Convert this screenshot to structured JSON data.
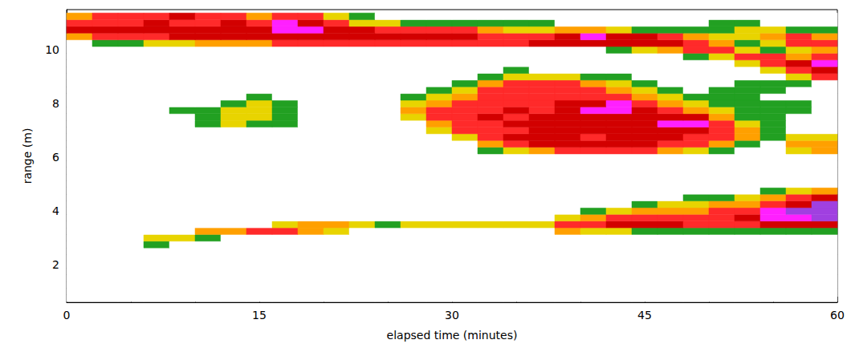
{
  "chart_data": {
    "type": "heatmap",
    "xlabel": "elapsed time (minutes)",
    "ylabel": "range (m)",
    "xlim": [
      0,
      60
    ],
    "xticks": [
      0,
      15,
      30,
      45,
      60
    ],
    "ylim": [
      0.6,
      11.5
    ],
    "yticks": [
      2,
      4,
      6,
      8,
      10
    ],
    "grid": false,
    "x": [
      1,
      3,
      5,
      7,
      9,
      11,
      13,
      15,
      17,
      19,
      21,
      23,
      25,
      27,
      29,
      31,
      33,
      35,
      37,
      39,
      41,
      43,
      45,
      47,
      49,
      51,
      53,
      55,
      57,
      59
    ],
    "y": [
      0.75,
      1,
      1.25,
      1.5,
      1.75,
      2,
      2.25,
      2.5,
      2.75,
      3,
      3.25,
      3.5,
      3.75,
      4,
      4.25,
      4.5,
      4.75,
      5,
      5.25,
      5.5,
      5.75,
      6,
      6.25,
      6.5,
      6.75,
      7,
      7.25,
      7.5,
      7.75,
      8,
      8.25,
      8.5,
      8.75,
      9,
      9.25,
      9.5,
      9.75,
      10,
      10.25,
      10.5,
      10.75,
      11,
      11.25
    ],
    "cells": [
      [
        0,
        0,
        0,
        0,
        0,
        0,
        0,
        0,
        0,
        0,
        0,
        0,
        0,
        0,
        0,
        0,
        0,
        0,
        0,
        0,
        0,
        0,
        0,
        0,
        0,
        0,
        0,
        0,
        0,
        0
      ],
      [
        0,
        0,
        0,
        0,
        0,
        0,
        0,
        0,
        0,
        0,
        0,
        0,
        0,
        0,
        0,
        0,
        0,
        0,
        0,
        0,
        0,
        0,
        0,
        0,
        0,
        0,
        0,
        0,
        0,
        0
      ],
      [
        0,
        0,
        0,
        0,
        0,
        0,
        0,
        0,
        0,
        0,
        0,
        0,
        0,
        0,
        0,
        0,
        0,
        0,
        0,
        0,
        0,
        0,
        0,
        0,
        0,
        0,
        0,
        0,
        0,
        0
      ],
      [
        0,
        0,
        0,
        0,
        0,
        0,
        0,
        0,
        0,
        0,
        0,
        0,
        0,
        0,
        0,
        0,
        0,
        0,
        0,
        0,
        0,
        0,
        0,
        0,
        0,
        0,
        0,
        0,
        0,
        0
      ],
      [
        0,
        0,
        0,
        0,
        0,
        0,
        0,
        0,
        0,
        0,
        0,
        0,
        0,
        0,
        0,
        0,
        0,
        0,
        0,
        0,
        0,
        0,
        0,
        0,
        0,
        0,
        0,
        0,
        0,
        0
      ],
      [
        0,
        0,
        0,
        0,
        0,
        0,
        0,
        0,
        0,
        0,
        0,
        0,
        0,
        0,
        0,
        0,
        0,
        0,
        0,
        0,
        0,
        0,
        0,
        0,
        0,
        0,
        0,
        0,
        0,
        0
      ],
      [
        0,
        0,
        0,
        0,
        0,
        0,
        0,
        0,
        0,
        0,
        0,
        0,
        0,
        0,
        0,
        0,
        0,
        0,
        0,
        0,
        0,
        0,
        0,
        0,
        0,
        0,
        0,
        0,
        0,
        0
      ],
      [
        0,
        0,
        0,
        0,
        0,
        0,
        0,
        0,
        0,
        0,
        0,
        0,
        0,
        0,
        0,
        0,
        0,
        0,
        0,
        0,
        0,
        0,
        0,
        0,
        0,
        0,
        0,
        0,
        0,
        0
      ],
      [
        0,
        0,
        0,
        1,
        0,
        0,
        0,
        0,
        0,
        0,
        0,
        0,
        0,
        0,
        0,
        0,
        0,
        0,
        0,
        0,
        0,
        0,
        0,
        0,
        0,
        0,
        0,
        0,
        0,
        0
      ],
      [
        0,
        0,
        0,
        2,
        2,
        1,
        0,
        0,
        0,
        0,
        0,
        0,
        0,
        0,
        0,
        0,
        0,
        0,
        0,
        0,
        0,
        0,
        0,
        0,
        0,
        0,
        0,
        0,
        0,
        0
      ],
      [
        0,
        0,
        0,
        0,
        0,
        3,
        3,
        4,
        4,
        3,
        2,
        0,
        0,
        0,
        0,
        0,
        0,
        0,
        0,
        3,
        2,
        2,
        1,
        1,
        1,
        1,
        1,
        1,
        1,
        1
      ],
      [
        0,
        0,
        0,
        0,
        0,
        0,
        0,
        0,
        2,
        3,
        3,
        2,
        1,
        2,
        2,
        2,
        2,
        2,
        2,
        4,
        4,
        5,
        5,
        5,
        4,
        4,
        4,
        5,
        5,
        5
      ],
      [
        0,
        0,
        0,
        0,
        0,
        0,
        0,
        0,
        0,
        0,
        0,
        0,
        0,
        0,
        0,
        0,
        0,
        0,
        0,
        2,
        3,
        4,
        4,
        4,
        4,
        4,
        5,
        6,
        6,
        7
      ],
      [
        0,
        0,
        0,
        0,
        0,
        0,
        0,
        0,
        0,
        0,
        0,
        0,
        0,
        0,
        0,
        0,
        0,
        0,
        0,
        0,
        1,
        2,
        3,
        3,
        3,
        4,
        4,
        6,
        7,
        7
      ],
      [
        0,
        0,
        0,
        0,
        0,
        0,
        0,
        0,
        0,
        0,
        0,
        0,
        0,
        0,
        0,
        0,
        0,
        0,
        0,
        0,
        0,
        0,
        1,
        2,
        2,
        3,
        3,
        4,
        5,
        7
      ],
      [
        0,
        0,
        0,
        0,
        0,
        0,
        0,
        0,
        0,
        0,
        0,
        0,
        0,
        0,
        0,
        0,
        0,
        0,
        0,
        0,
        0,
        0,
        0,
        0,
        1,
        1,
        2,
        3,
        4,
        5
      ],
      [
        0,
        0,
        0,
        0,
        0,
        0,
        0,
        0,
        0,
        0,
        0,
        0,
        0,
        0,
        0,
        0,
        0,
        0,
        0,
        0,
        0,
        0,
        0,
        0,
        0,
        0,
        0,
        1,
        2,
        3
      ],
      [
        0,
        0,
        0,
        0,
        0,
        0,
        0,
        0,
        0,
        0,
        0,
        0,
        0,
        0,
        0,
        0,
        0,
        0,
        0,
        0,
        0,
        0,
        0,
        0,
        0,
        0,
        0,
        0,
        0,
        0
      ],
      [
        0,
        0,
        0,
        0,
        0,
        0,
        0,
        0,
        0,
        0,
        0,
        0,
        0,
        0,
        0,
        0,
        0,
        0,
        0,
        0,
        0,
        0,
        0,
        0,
        0,
        0,
        0,
        0,
        0,
        0
      ],
      [
        0,
        0,
        0,
        0,
        0,
        0,
        0,
        0,
        0,
        0,
        0,
        0,
        0,
        0,
        0,
        0,
        0,
        0,
        0,
        0,
        0,
        0,
        0,
        0,
        0,
        0,
        0,
        0,
        0,
        0
      ],
      [
        0,
        0,
        0,
        0,
        0,
        0,
        0,
        0,
        0,
        0,
        0,
        0,
        0,
        0,
        0,
        0,
        0,
        0,
        0,
        0,
        0,
        0,
        0,
        0,
        0,
        0,
        0,
        0,
        0,
        0
      ],
      [
        0,
        0,
        0,
        0,
        0,
        0,
        0,
        0,
        0,
        0,
        0,
        0,
        0,
        0,
        0,
        0,
        0,
        0,
        0,
        0,
        0,
        0,
        0,
        0,
        0,
        0,
        0,
        0,
        0,
        0
      ],
      [
        0,
        0,
        0,
        0,
        0,
        0,
        0,
        0,
        0,
        0,
        0,
        0,
        0,
        0,
        0,
        0,
        1,
        2,
        3,
        4,
        4,
        4,
        4,
        3,
        2,
        1,
        0,
        0,
        2,
        3
      ],
      [
        0,
        0,
        0,
        0,
        0,
        0,
        0,
        0,
        0,
        0,
        0,
        0,
        0,
        0,
        0,
        0,
        3,
        4,
        5,
        5,
        5,
        5,
        5,
        4,
        4,
        3,
        1,
        0,
        3,
        3
      ],
      [
        0,
        0,
        0,
        0,
        0,
        0,
        0,
        0,
        0,
        0,
        0,
        0,
        0,
        0,
        0,
        2,
        4,
        5,
        5,
        5,
        4,
        5,
        5,
        5,
        4,
        4,
        3,
        1,
        2,
        2
      ],
      [
        0,
        0,
        0,
        0,
        0,
        0,
        0,
        0,
        0,
        0,
        0,
        0,
        0,
        0,
        2,
        4,
        4,
        4,
        5,
        5,
        5,
        5,
        5,
        5,
        5,
        4,
        3,
        1,
        0,
        0
      ],
      [
        0,
        0,
        0,
        0,
        0,
        1,
        2,
        1,
        1,
        0,
        0,
        0,
        0,
        0,
        3,
        4,
        4,
        5,
        5,
        5,
        5,
        5,
        5,
        6,
        6,
        4,
        2,
        1,
        0,
        0
      ],
      [
        0,
        0,
        0,
        0,
        0,
        1,
        2,
        2,
        1,
        0,
        0,
        0,
        0,
        2,
        4,
        4,
        5,
        4,
        5,
        5,
        5,
        5,
        5,
        5,
        5,
        3,
        1,
        1,
        0,
        0
      ],
      [
        0,
        0,
        0,
        0,
        1,
        1,
        2,
        2,
        1,
        0,
        0,
        0,
        0,
        3,
        4,
        4,
        4,
        5,
        4,
        5,
        6,
        6,
        5,
        4,
        3,
        2,
        1,
        1,
        1,
        0
      ],
      [
        0,
        0,
        0,
        0,
        0,
        0,
        1,
        2,
        1,
        0,
        0,
        0,
        0,
        2,
        3,
        4,
        4,
        4,
        4,
        5,
        5,
        6,
        4,
        3,
        2,
        1,
        1,
        1,
        1,
        0
      ],
      [
        0,
        0,
        0,
        0,
        0,
        0,
        0,
        1,
        0,
        0,
        0,
        0,
        0,
        1,
        2,
        3,
        4,
        4,
        4,
        4,
        4,
        4,
        3,
        2,
        1,
        1,
        1,
        0,
        0,
        0
      ],
      [
        0,
        0,
        0,
        0,
        0,
        0,
        0,
        0,
        0,
        0,
        0,
        0,
        0,
        0,
        1,
        2,
        4,
        4,
        4,
        4,
        4,
        3,
        2,
        1,
        0,
        1,
        1,
        1,
        0,
        0
      ],
      [
        0,
        0,
        0,
        0,
        0,
        0,
        0,
        0,
        0,
        0,
        0,
        0,
        0,
        0,
        0,
        1,
        3,
        4,
        4,
        4,
        3,
        2,
        1,
        0,
        0,
        0,
        1,
        1,
        1,
        0
      ],
      [
        0,
        0,
        0,
        0,
        0,
        0,
        0,
        0,
        0,
        0,
        0,
        0,
        0,
        0,
        0,
        0,
        1,
        2,
        2,
        2,
        1,
        1,
        0,
        0,
        0,
        0,
        0,
        0,
        2,
        4
      ],
      [
        0,
        0,
        0,
        0,
        0,
        0,
        0,
        0,
        0,
        0,
        0,
        0,
        0,
        0,
        0,
        0,
        0,
        1,
        0,
        0,
        0,
        0,
        0,
        0,
        0,
        0,
        0,
        2,
        4,
        5
      ],
      [
        0,
        0,
        0,
        0,
        0,
        0,
        0,
        0,
        0,
        0,
        0,
        0,
        0,
        0,
        0,
        0,
        0,
        0,
        0,
        0,
        0,
        0,
        0,
        0,
        0,
        0,
        2,
        4,
        5,
        6
      ],
      [
        0,
        0,
        0,
        0,
        0,
        0,
        0,
        0,
        0,
        0,
        0,
        0,
        0,
        0,
        0,
        0,
        0,
        0,
        0,
        0,
        0,
        0,
        0,
        0,
        1,
        2,
        4,
        4,
        3,
        4
      ],
      [
        0,
        0,
        0,
        0,
        0,
        0,
        0,
        0,
        0,
        0,
        0,
        0,
        0,
        0,
        0,
        0,
        0,
        0,
        0,
        0,
        0,
        1,
        2,
        3,
        4,
        4,
        2,
        1,
        2,
        3
      ],
      [
        0,
        1,
        1,
        2,
        2,
        3,
        3,
        3,
        4,
        4,
        4,
        4,
        4,
        4,
        4,
        4,
        4,
        4,
        5,
        5,
        5,
        5,
        5,
        5,
        4,
        3,
        1,
        2,
        4,
        4
      ],
      [
        3,
        4,
        4,
        4,
        5,
        5,
        5,
        5,
        5,
        5,
        5,
        5,
        5,
        5,
        5,
        5,
        4,
        4,
        4,
        5,
        6,
        5,
        5,
        4,
        3,
        2,
        2,
        3,
        4,
        3
      ],
      [
        5,
        5,
        5,
        5,
        5,
        5,
        5,
        5,
        6,
        6,
        5,
        5,
        4,
        4,
        4,
        4,
        3,
        2,
        2,
        3,
        3,
        2,
        1,
        1,
        1,
        1,
        2,
        2,
        1,
        1
      ],
      [
        4,
        4,
        4,
        5,
        4,
        4,
        5,
        4,
        6,
        5,
        4,
        2,
        2,
        1,
        1,
        1,
        1,
        1,
        1,
        0,
        0,
        0,
        0,
        0,
        0,
        1,
        1,
        0,
        0,
        0
      ],
      [
        3,
        4,
        4,
        4,
        5,
        4,
        4,
        3,
        4,
        4,
        2,
        1,
        0,
        0,
        0,
        0,
        0,
        0,
        0,
        0,
        0,
        0,
        0,
        0,
        0,
        0,
        0,
        0,
        0,
        0
      ]
    ],
    "color_range": [
      0,
      7
    ],
    "colors": [
      "#ffffff",
      "#22a022",
      "#e8d400",
      "#ffa000",
      "#ff2a2a",
      "#d20000",
      "#ff20ff",
      "#a040e0"
    ]
  }
}
